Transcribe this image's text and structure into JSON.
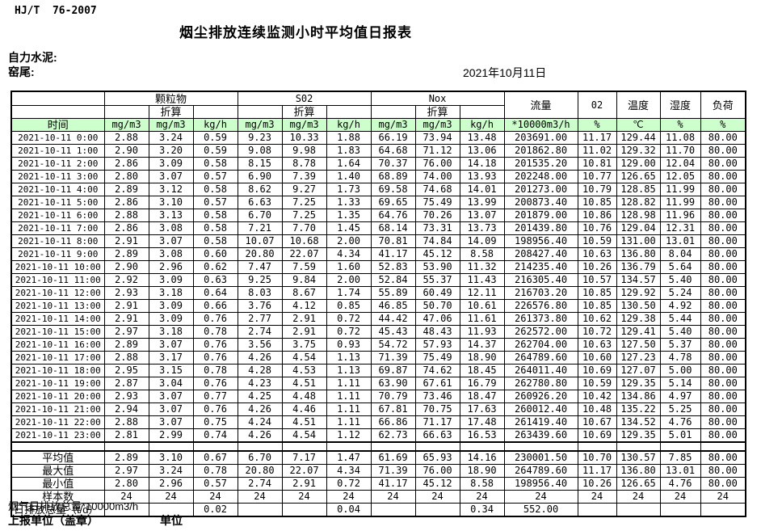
{
  "page": {
    "standard": "HJ/T  76-2007",
    "title": "烟尘排放连续监测小时平均值日报表",
    "company": "自力水泥:",
    "site": "窑尾:",
    "date": "2021年10月11日",
    "footnote": "烟气日排放总量*10000m3/h",
    "report_unit": "上报单位（盖章）",
    "unit_label": "单位"
  },
  "table": {
    "time_header": "时间",
    "converted_label": "折算",
    "groups": [
      {
        "label": "颗粒物"
      },
      {
        "label": "S02"
      },
      {
        "label": "Nox"
      }
    ],
    "sub_units": [
      "mg/m3",
      "mg/m3",
      "kg/h"
    ],
    "singles": [
      {
        "label": "流量",
        "unit": "*10000m3/h"
      },
      {
        "label": "02",
        "unit": "%"
      },
      {
        "label": "温度",
        "unit": "℃"
      },
      {
        "label": "湿度",
        "unit": "%"
      },
      {
        "label": "负荷",
        "unit": "%"
      }
    ],
    "rows": [
      {
        "time": "2021-10-11 0:00",
        "values": [
          "2.88",
          "3.24",
          "0.59",
          "9.23",
          "10.33",
          "1.88",
          "66.19",
          "73.94",
          "13.48",
          "203691.00",
          "11.17",
          "129.44",
          "11.08",
          "80.00"
        ]
      },
      {
        "time": "2021-10-11 1:00",
        "values": [
          "2.90",
          "3.20",
          "0.59",
          "9.08",
          "9.98",
          "1.83",
          "64.68",
          "71.12",
          "13.06",
          "201862.80",
          "11.02",
          "129.32",
          "11.70",
          "80.00"
        ]
      },
      {
        "time": "2021-10-11 2:00",
        "values": [
          "2.86",
          "3.09",
          "0.58",
          "8.15",
          "8.78",
          "1.64",
          "70.37",
          "76.00",
          "14.18",
          "201535.20",
          "10.81",
          "129.00",
          "12.04",
          "80.00"
        ]
      },
      {
        "time": "2021-10-11 3:00",
        "values": [
          "2.80",
          "3.07",
          "0.57",
          "6.90",
          "7.39",
          "1.40",
          "68.89",
          "74.00",
          "13.93",
          "202248.00",
          "10.77",
          "126.65",
          "12.05",
          "80.00"
        ]
      },
      {
        "time": "2021-10-11 4:00",
        "values": [
          "2.89",
          "3.12",
          "0.58",
          "8.62",
          "9.27",
          "1.73",
          "69.58",
          "74.68",
          "14.01",
          "201273.00",
          "10.79",
          "128.85",
          "11.99",
          "80.00"
        ]
      },
      {
        "time": "2021-10-11 5:00",
        "values": [
          "2.86",
          "3.10",
          "0.57",
          "6.63",
          "7.25",
          "1.33",
          "69.65",
          "75.49",
          "13.99",
          "200873.40",
          "10.85",
          "128.82",
          "11.99",
          "80.00"
        ]
      },
      {
        "time": "2021-10-11 6:00",
        "values": [
          "2.88",
          "3.13",
          "0.58",
          "6.70",
          "7.25",
          "1.35",
          "64.76",
          "70.26",
          "13.07",
          "201879.00",
          "10.86",
          "128.98",
          "11.96",
          "80.00"
        ]
      },
      {
        "time": "2021-10-11 7:00",
        "values": [
          "2.86",
          "3.08",
          "0.58",
          "7.21",
          "7.70",
          "1.45",
          "68.14",
          "73.31",
          "13.73",
          "201439.80",
          "10.76",
          "129.04",
          "12.31",
          "80.00"
        ]
      },
      {
        "time": "2021-10-11 8:00",
        "values": [
          "2.91",
          "3.07",
          "0.58",
          "10.07",
          "10.68",
          "2.00",
          "70.81",
          "74.84",
          "14.09",
          "198956.40",
          "10.59",
          "131.00",
          "13.01",
          "80.00"
        ]
      },
      {
        "time": "2021-10-11 9:00",
        "values": [
          "2.89",
          "3.08",
          "0.60",
          "20.80",
          "22.07",
          "4.34",
          "41.17",
          "45.12",
          "8.58",
          "208427.40",
          "10.63",
          "136.80",
          "8.04",
          "80.00"
        ]
      },
      {
        "time": "2021-10-11 10:00",
        "values": [
          "2.90",
          "2.96",
          "0.62",
          "7.47",
          "7.59",
          "1.60",
          "52.83",
          "53.90",
          "11.32",
          "214235.40",
          "10.26",
          "136.79",
          "5.64",
          "80.00"
        ]
      },
      {
        "time": "2021-10-11 11:00",
        "values": [
          "2.92",
          "3.09",
          "0.63",
          "9.25",
          "9.84",
          "2.00",
          "52.84",
          "55.37",
          "11.43",
          "216305.40",
          "10.57",
          "134.57",
          "5.40",
          "80.00"
        ]
      },
      {
        "time": "2021-10-11 12:00",
        "values": [
          "2.93",
          "3.18",
          "0.64",
          "8.03",
          "8.67",
          "1.74",
          "55.89",
          "60.49",
          "12.11",
          "216703.20",
          "10.85",
          "129.92",
          "5.24",
          "80.00"
        ]
      },
      {
        "time": "2021-10-11 13:00",
        "values": [
          "2.91",
          "3.09",
          "0.66",
          "3.76",
          "4.12",
          "0.85",
          "46.85",
          "50.70",
          "10.61",
          "226576.80",
          "10.85",
          "130.50",
          "4.92",
          "80.00"
        ]
      },
      {
        "time": "2021-10-11 14:00",
        "values": [
          "2.91",
          "3.09",
          "0.76",
          "2.77",
          "2.91",
          "0.72",
          "44.42",
          "47.06",
          "11.61",
          "261373.80",
          "10.62",
          "129.38",
          "5.44",
          "80.00"
        ]
      },
      {
        "time": "2021-10-11 15:00",
        "values": [
          "2.97",
          "3.18",
          "0.78",
          "2.74",
          "2.91",
          "0.72",
          "45.43",
          "48.43",
          "11.93",
          "262572.00",
          "10.72",
          "129.41",
          "5.40",
          "80.00"
        ]
      },
      {
        "time": "2021-10-11 16:00",
        "values": [
          "2.89",
          "3.07",
          "0.76",
          "3.56",
          "3.75",
          "0.93",
          "54.72",
          "57.93",
          "14.37",
          "262704.00",
          "10.63",
          "127.50",
          "5.37",
          "80.00"
        ]
      },
      {
        "time": "2021-10-11 17:00",
        "values": [
          "2.88",
          "3.17",
          "0.76",
          "4.26",
          "4.54",
          "1.13",
          "71.39",
          "75.49",
          "18.90",
          "264789.60",
          "10.60",
          "127.23",
          "4.78",
          "80.00"
        ]
      },
      {
        "time": "2021-10-11 18:00",
        "values": [
          "2.95",
          "3.15",
          "0.78",
          "4.28",
          "4.53",
          "1.13",
          "69.87",
          "74.62",
          "18.45",
          "264011.40",
          "10.69",
          "127.07",
          "5.00",
          "80.00"
        ]
      },
      {
        "time": "2021-10-11 19:00",
        "values": [
          "2.87",
          "3.04",
          "0.76",
          "4.23",
          "4.51",
          "1.11",
          "63.90",
          "67.61",
          "16.79",
          "262780.80",
          "10.59",
          "129.35",
          "5.14",
          "80.00"
        ]
      },
      {
        "time": "2021-10-11 20:00",
        "values": [
          "2.93",
          "3.07",
          "0.77",
          "4.25",
          "4.48",
          "1.11",
          "70.79",
          "73.46",
          "18.47",
          "260926.20",
          "10.42",
          "134.86",
          "4.97",
          "80.00"
        ]
      },
      {
        "time": "2021-10-11 21:00",
        "values": [
          "2.94",
          "3.07",
          "0.76",
          "4.26",
          "4.46",
          "1.11",
          "67.81",
          "70.75",
          "17.63",
          "260012.40",
          "10.48",
          "135.22",
          "5.25",
          "80.00"
        ]
      },
      {
        "time": "2021-10-11 22:00",
        "values": [
          "2.88",
          "3.07",
          "0.75",
          "4.24",
          "4.51",
          "1.11",
          "66.86",
          "71.17",
          "17.48",
          "261419.40",
          "10.67",
          "134.52",
          "4.76",
          "80.00"
        ]
      },
      {
        "time": "2021-10-11 23:00",
        "values": [
          "2.81",
          "2.99",
          "0.74",
          "4.26",
          "4.54",
          "1.12",
          "62.73",
          "66.63",
          "16.53",
          "263439.60",
          "10.69",
          "129.35",
          "5.01",
          "80.00"
        ]
      }
    ],
    "summary": [
      {
        "label": "平均值",
        "values": [
          "2.89",
          "3.10",
          "0.67",
          "6.70",
          "7.17",
          "1.47",
          "61.69",
          "65.93",
          "14.16",
          "230001.50",
          "10.70",
          "130.57",
          "7.85",
          "80.00"
        ]
      },
      {
        "label": "最大值",
        "values": [
          "2.97",
          "3.24",
          "0.78",
          "20.80",
          "22.07",
          "4.34",
          "71.39",
          "76.00",
          "18.90",
          "264789.60",
          "11.17",
          "136.80",
          "13.01",
          "80.00"
        ]
      },
      {
        "label": "最小值",
        "values": [
          "2.80",
          "2.96",
          "0.57",
          "2.74",
          "2.91",
          "0.72",
          "41.17",
          "45.12",
          "8.58",
          "198956.40",
          "10.26",
          "126.65",
          "4.76",
          "80.00"
        ]
      },
      {
        "label": "样本数",
        "values": [
          "24",
          "24",
          "24",
          "24",
          "24",
          "24",
          "24",
          "24",
          "24",
          "24",
          "24",
          "24",
          "24",
          "24"
        ]
      },
      {
        "label": "日排放总量（t/d）",
        "values": [
          "",
          "",
          "0.02",
          "",
          "",
          "0.04",
          "",
          "",
          "0.34",
          "552.00",
          "",
          "",
          "",
          ""
        ]
      }
    ]
  }
}
